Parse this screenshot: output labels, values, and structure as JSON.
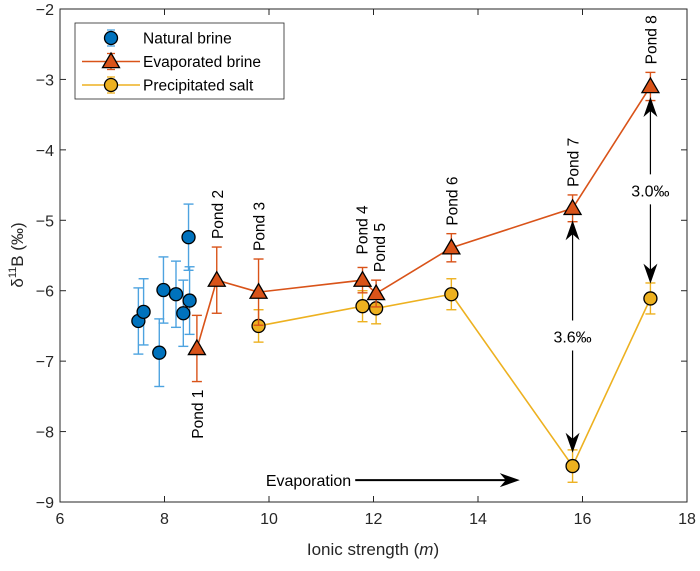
{
  "chart_data": {
    "type": "scatter",
    "xlabel_main": "Ionic strength (",
    "xlabel_italic": "m",
    "xlabel_end": ")",
    "ylabel_delta": "δ",
    "ylabel_sup": "11",
    "ylabel_rest": "B (‰)",
    "xlim": [
      6,
      18
    ],
    "ylim": [
      -9,
      -2
    ],
    "xticks": [
      6,
      8,
      10,
      12,
      14,
      16,
      18
    ],
    "yticks": [
      -2,
      -3,
      -4,
      -5,
      -6,
      -7,
      -8,
      -9
    ],
    "ytick_labels": [
      "−2",
      "−3",
      "−4",
      "−5",
      "−6",
      "−7",
      "−8",
      "−9"
    ],
    "grid": false,
    "legend_position": "top-left",
    "series": [
      {
        "name": "Natural brine",
        "marker": "circle",
        "color": "#0072BD",
        "errcolor": "#4DA3E0",
        "line": false,
        "x": [
          7.5,
          7.6,
          7.9,
          7.98,
          8.22,
          8.36,
          8.48,
          8.46
        ],
        "y": [
          -6.43,
          -6.3,
          -6.88,
          -5.99,
          -6.05,
          -6.32,
          -6.14,
          -5.24
        ],
        "err": [
          0.47,
          0.47,
          0.48,
          0.47,
          0.47,
          0.47,
          0.48,
          0.47
        ]
      },
      {
        "name": "Evaporated brine",
        "marker": "triangle",
        "color": "#D95319",
        "errcolor": "#D95319",
        "line": true,
        "x": [
          8.62,
          9.0,
          9.8,
          11.79,
          12.05,
          13.49,
          15.81,
          17.3
        ],
        "y": [
          -6.82,
          -5.85,
          -6.02,
          -5.85,
          -6.04,
          -5.39,
          -4.83,
          -3.1
        ],
        "err": [
          0.47,
          0.47,
          0.47,
          0.18,
          0.19,
          0.2,
          0.19,
          0.2
        ],
        "labels": [
          "Pond 1",
          "Pond 2",
          "Pond 3",
          "Pond 4",
          "Pond 5",
          "Pond 6",
          "Pond 7",
          "Pond 8"
        ]
      },
      {
        "name": "Precipitated salt",
        "marker": "circle",
        "color": "#EDB120",
        "errcolor": "#EDB120",
        "line": true,
        "x": [
          9.8,
          11.79,
          12.05,
          13.49,
          15.81,
          17.3
        ],
        "y": [
          -6.5,
          -6.22,
          -6.25,
          -6.05,
          -8.49,
          -6.11
        ],
        "err": [
          0.23,
          0.22,
          0.22,
          0.22,
          0.23,
          0.22
        ]
      }
    ],
    "annotations": [
      {
        "text": "Evaporation",
        "type": "arrow-right",
        "x_from": 11.65,
        "x_to": 14.8,
        "y": -8.69
      },
      {
        "text": "3.6‰",
        "type": "double-arrow",
        "x": 15.81,
        "y_from": -8.3,
        "y_to": -5.0
      },
      {
        "text": "3.0‰",
        "type": "double-arrow",
        "x": 17.3,
        "y_from": -5.9,
        "y_to": -3.25
      }
    ]
  }
}
